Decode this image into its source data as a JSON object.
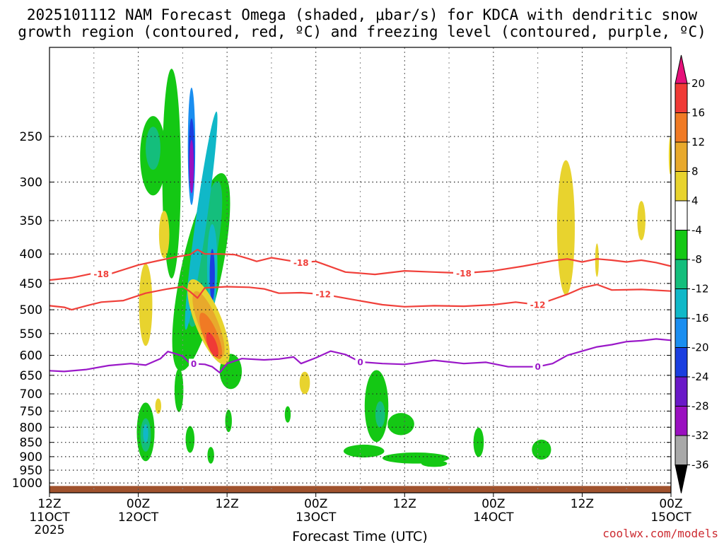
{
  "chart_data": {
    "type": "time-height contour",
    "title_line1": "2025101112 NAM Forecast Omega (shaded, μbar/s) for KDCA with dendritic snow",
    "title_line2": "growth region (contoured, red, ºC) and freezing level (contoured, purple, ºC)",
    "xlabel": "Forecast Time (UTC)",
    "credit": "coolwx.com/models",
    "year_label": "2025",
    "x_range_hours": [
      0,
      84
    ],
    "y_range_mb": [
      1040,
      175
    ],
    "y_ticks": [
      250,
      300,
      350,
      400,
      450,
      500,
      550,
      600,
      650,
      700,
      750,
      800,
      850,
      900,
      950,
      1000
    ],
    "x_ticks": [
      {
        "hour": 0,
        "time": "12Z",
        "date": "11OCT"
      },
      {
        "hour": 12,
        "time": "00Z",
        "date": "12OCT"
      },
      {
        "hour": 24,
        "time": "12Z",
        "date": ""
      },
      {
        "hour": 36,
        "time": "00Z",
        "date": "13OCT"
      },
      {
        "hour": 48,
        "time": "12Z",
        "date": ""
      },
      {
        "hour": 60,
        "time": "00Z",
        "date": "14OCT"
      },
      {
        "hour": 72,
        "time": "12Z",
        "date": ""
      },
      {
        "hour": 84,
        "time": "00Z",
        "date": "15OCT"
      }
    ],
    "colorbar": {
      "labels": [
        "20",
        "16",
        "12",
        "8",
        "4",
        "-4",
        "-8",
        "-12",
        "-16",
        "-20",
        "-24",
        "-28",
        "-32",
        "-36"
      ],
      "bins": [
        {
          "lo": 20,
          "hi": 99,
          "color": "#e6117a"
        },
        {
          "lo": 16,
          "hi": 20,
          "color": "#f03a36"
        },
        {
          "lo": 12,
          "hi": 16,
          "color": "#f07a24"
        },
        {
          "lo": 8,
          "hi": 12,
          "color": "#e8a92c"
        },
        {
          "lo": 4,
          "hi": 8,
          "color": "#e8d32e"
        },
        {
          "lo": -4,
          "hi": 4,
          "color": "#ffffff"
        },
        {
          "lo": -8,
          "hi": -4,
          "color": "#14c814"
        },
        {
          "lo": -12,
          "hi": -8,
          "color": "#14be7c"
        },
        {
          "lo": -16,
          "hi": -12,
          "color": "#10b8c8"
        },
        {
          "lo": -20,
          "hi": -16,
          "color": "#1a8ef0"
        },
        {
          "lo": -24,
          "hi": -20,
          "color": "#1a3ee0"
        },
        {
          "lo": -28,
          "hi": -24,
          "color": "#6a18c8"
        },
        {
          "lo": -32,
          "hi": -28,
          "color": "#9a10c0"
        },
        {
          "lo": -36,
          "hi": -32,
          "color": "#a8a8a8"
        },
        {
          "lo": -99,
          "hi": -36,
          "color": "#000000"
        }
      ]
    },
    "contours": [
      {
        "name": "-18C isotherm",
        "label": "-18",
        "color": "#f0403a",
        "label_hours": [
          7,
          34,
          56
        ],
        "points": [
          [
            0,
            444
          ],
          [
            3,
            440
          ],
          [
            6,
            432
          ],
          [
            8,
            434
          ],
          [
            12,
            418
          ],
          [
            15,
            410
          ],
          [
            17,
            405
          ],
          [
            19,
            401
          ],
          [
            20,
            393
          ],
          [
            21,
            400
          ],
          [
            23,
            400
          ],
          [
            25,
            401
          ],
          [
            27,
            408
          ],
          [
            28,
            412
          ],
          [
            30,
            406
          ],
          [
            34,
            414
          ],
          [
            36,
            412
          ],
          [
            40,
            430
          ],
          [
            44,
            434
          ],
          [
            48,
            428
          ],
          [
            52,
            430
          ],
          [
            56,
            432
          ],
          [
            60,
            428
          ],
          [
            64,
            420
          ],
          [
            68,
            411
          ],
          [
            70,
            408
          ],
          [
            72,
            413
          ],
          [
            74,
            408
          ],
          [
            76,
            410
          ],
          [
            78,
            413
          ],
          [
            80,
            410
          ],
          [
            82,
            414
          ],
          [
            84,
            420
          ]
        ]
      },
      {
        "name": "-12C isotherm",
        "label": "-12",
        "color": "#f0403a",
        "label_hours": [
          37,
          66
        ],
        "points": [
          [
            0,
            492
          ],
          [
            2,
            495
          ],
          [
            3,
            500
          ],
          [
            5,
            492
          ],
          [
            7,
            485
          ],
          [
            10,
            482
          ],
          [
            13,
            468
          ],
          [
            16,
            460
          ],
          [
            18,
            456
          ],
          [
            19,
            465
          ],
          [
            20,
            477
          ],
          [
            21,
            458
          ],
          [
            24,
            456
          ],
          [
            27,
            457
          ],
          [
            29,
            460
          ],
          [
            31,
            468
          ],
          [
            34,
            467
          ],
          [
            37,
            470
          ],
          [
            41,
            480
          ],
          [
            45,
            490
          ],
          [
            48,
            494
          ],
          [
            52,
            492
          ],
          [
            56,
            493
          ],
          [
            60,
            490
          ],
          [
            63,
            485
          ],
          [
            66,
            490
          ],
          [
            70,
            470
          ],
          [
            72,
            458
          ],
          [
            74,
            452
          ],
          [
            76,
            462
          ],
          [
            80,
            461
          ],
          [
            84,
            464
          ]
        ]
      },
      {
        "name": "0C freezing level",
        "label": "0",
        "color": "#9a18c8",
        "label_hours": [
          19.5,
          42,
          66
        ],
        "points": [
          [
            0,
            638
          ],
          [
            2,
            640
          ],
          [
            5,
            635
          ],
          [
            8,
            625
          ],
          [
            11,
            620
          ],
          [
            13,
            624
          ],
          [
            15,
            608
          ],
          [
            16,
            591
          ],
          [
            17,
            596
          ],
          [
            18,
            602
          ],
          [
            19,
            620
          ],
          [
            21,
            622
          ],
          [
            22,
            628
          ],
          [
            23,
            643
          ],
          [
            24,
            620
          ],
          [
            26,
            608
          ],
          [
            29,
            611
          ],
          [
            31,
            609
          ],
          [
            33,
            604
          ],
          [
            34,
            620
          ],
          [
            36,
            606
          ],
          [
            38,
            590
          ],
          [
            40,
            598
          ],
          [
            42,
            616
          ],
          [
            45,
            620
          ],
          [
            48,
            622
          ],
          [
            52,
            612
          ],
          [
            56,
            620
          ],
          [
            59,
            617
          ],
          [
            62,
            628
          ],
          [
            66,
            628
          ],
          [
            68,
            620
          ],
          [
            70,
            600
          ],
          [
            72,
            590
          ],
          [
            74,
            580
          ],
          [
            76,
            575
          ],
          [
            78,
            568
          ],
          [
            80,
            566
          ],
          [
            82,
            562
          ],
          [
            84,
            565
          ]
        ]
      }
    ],
    "omega_areas": [
      {
        "value": -6,
        "hour": 16.5,
        "mb": 290,
        "w_h": 2.5,
        "h_mb": 230,
        "angle": 0
      },
      {
        "value": -6,
        "hour": 14.0,
        "mb": 270,
        "w_h": 3.5,
        "h_mb": 85,
        "angle": 0
      },
      {
        "value": -10,
        "hour": 14.0,
        "mb": 262,
        "w_h": 2.0,
        "h_mb": 45,
        "angle": 0
      },
      {
        "value": -6,
        "hour": 20.5,
        "mb": 430,
        "w_h": 5.5,
        "h_mb": 330,
        "angle": 12
      },
      {
        "value": -10,
        "hour": 21.0,
        "mb": 400,
        "w_h": 3.2,
        "h_mb": 230,
        "angle": 10
      },
      {
        "value": -14,
        "hour": 20.5,
        "mb": 350,
        "w_h": 1.5,
        "h_mb": 290,
        "angle": 8
      },
      {
        "value": -18,
        "hour": 19.2,
        "mb": 260,
        "w_h": 1.0,
        "h_mb": 120,
        "angle": 0
      },
      {
        "value": -22,
        "hour": 19.2,
        "mb": 270,
        "w_h": 0.8,
        "h_mb": 80,
        "angle": 0
      },
      {
        "value": -30,
        "hour": 19.2,
        "mb": 282,
        "w_h": 0.6,
        "h_mb": 60,
        "angle": 0
      },
      {
        "value": -14,
        "hour": 22.0,
        "mb": 420,
        "w_h": 1.4,
        "h_mb": 140,
        "angle": 0
      },
      {
        "value": -22,
        "hour": 22.0,
        "mb": 435,
        "w_h": 0.7,
        "h_mb": 90,
        "angle": 0
      },
      {
        "value": -6,
        "hour": 24.5,
        "mb": 640,
        "w_h": 3.0,
        "h_mb": 90,
        "angle": 0
      },
      {
        "value": 6,
        "hour": 15.5,
        "mb": 370,
        "w_h": 1.4,
        "h_mb": 70,
        "angle": 0
      },
      {
        "value": 6,
        "hour": 13.0,
        "mb": 490,
        "w_h": 1.8,
        "h_mb": 160,
        "angle": 0
      },
      {
        "value": 6,
        "hour": 21.5,
        "mb": 525,
        "w_h": 3.6,
        "h_mb": 190,
        "angle": -22
      },
      {
        "value": 10,
        "hour": 21.5,
        "mb": 530,
        "w_h": 2.6,
        "h_mb": 150,
        "angle": -22
      },
      {
        "value": 14,
        "hour": 21.8,
        "mb": 555,
        "w_h": 1.9,
        "h_mb": 110,
        "angle": -22
      },
      {
        "value": 18,
        "hour": 22.0,
        "mb": 575,
        "w_h": 1.2,
        "h_mb": 60,
        "angle": -20
      },
      {
        "value": -6,
        "hour": 17.5,
        "mb": 690,
        "w_h": 1.2,
        "h_mb": 120,
        "angle": 0
      },
      {
        "value": -6,
        "hour": 13.0,
        "mb": 815,
        "w_h": 2.4,
        "h_mb": 190,
        "angle": 0
      },
      {
        "value": -10,
        "hour": 13.0,
        "mb": 825,
        "w_h": 1.4,
        "h_mb": 110,
        "angle": 0
      },
      {
        "value": -14,
        "hour": 13.0,
        "mb": 820,
        "w_h": 0.7,
        "h_mb": 60,
        "angle": 0
      },
      {
        "value": -6,
        "hour": 19.0,
        "mb": 840,
        "w_h": 1.2,
        "h_mb": 90,
        "angle": 0
      },
      {
        "value": -6,
        "hour": 21.8,
        "mb": 895,
        "w_h": 0.9,
        "h_mb": 60,
        "angle": 0
      },
      {
        "value": -6,
        "hour": 24.2,
        "mb": 780,
        "w_h": 0.9,
        "h_mb": 70,
        "angle": 0
      },
      {
        "value": 6,
        "hour": 14.7,
        "mb": 735,
        "w_h": 0.8,
        "h_mb": 45,
        "angle": 0
      },
      {
        "value": -6,
        "hour": 32.2,
        "mb": 760,
        "w_h": 0.8,
        "h_mb": 50,
        "angle": 0
      },
      {
        "value": 6,
        "hour": 34.5,
        "mb": 670,
        "w_h": 1.4,
        "h_mb": 60,
        "angle": 0
      },
      {
        "value": -6,
        "hour": 44.2,
        "mb": 735,
        "w_h": 3.2,
        "h_mb": 210,
        "angle": 0
      },
      {
        "value": -10,
        "hour": 44.7,
        "mb": 760,
        "w_h": 1.3,
        "h_mb": 80,
        "angle": 0
      },
      {
        "value": -6,
        "hour": 47.5,
        "mb": 790,
        "w_h": 3.6,
        "h_mb": 70,
        "angle": 0
      },
      {
        "value": -6,
        "hour": 42.5,
        "mb": 880,
        "w_h": 5.5,
        "h_mb": 45,
        "angle": 0
      },
      {
        "value": -6,
        "hour": 49.5,
        "mb": 905,
        "w_h": 9.0,
        "h_mb": 40,
        "angle": 0
      },
      {
        "value": -6,
        "hour": 52.0,
        "mb": 925,
        "w_h": 3.5,
        "h_mb": 25,
        "angle": 0
      },
      {
        "value": -6,
        "hour": 58.0,
        "mb": 850,
        "w_h": 1.4,
        "h_mb": 100,
        "angle": 0
      },
      {
        "value": -6,
        "hour": 66.5,
        "mb": 875,
        "w_h": 2.6,
        "h_mb": 70,
        "angle": 0
      },
      {
        "value": 6,
        "hour": 69.8,
        "mb": 360,
        "w_h": 2.4,
        "h_mb": 190,
        "angle": 0
      },
      {
        "value": 6,
        "hour": 74.0,
        "mb": 410,
        "w_h": 0.5,
        "h_mb": 55,
        "angle": 0
      },
      {
        "value": 6,
        "hour": 80.0,
        "mb": 350,
        "w_h": 1.1,
        "h_mb": 55,
        "angle": 0
      },
      {
        "value": 6,
        "hour": 83.9,
        "mb": 270,
        "w_h": 0.4,
        "h_mb": 40,
        "angle": 0
      }
    ]
  }
}
